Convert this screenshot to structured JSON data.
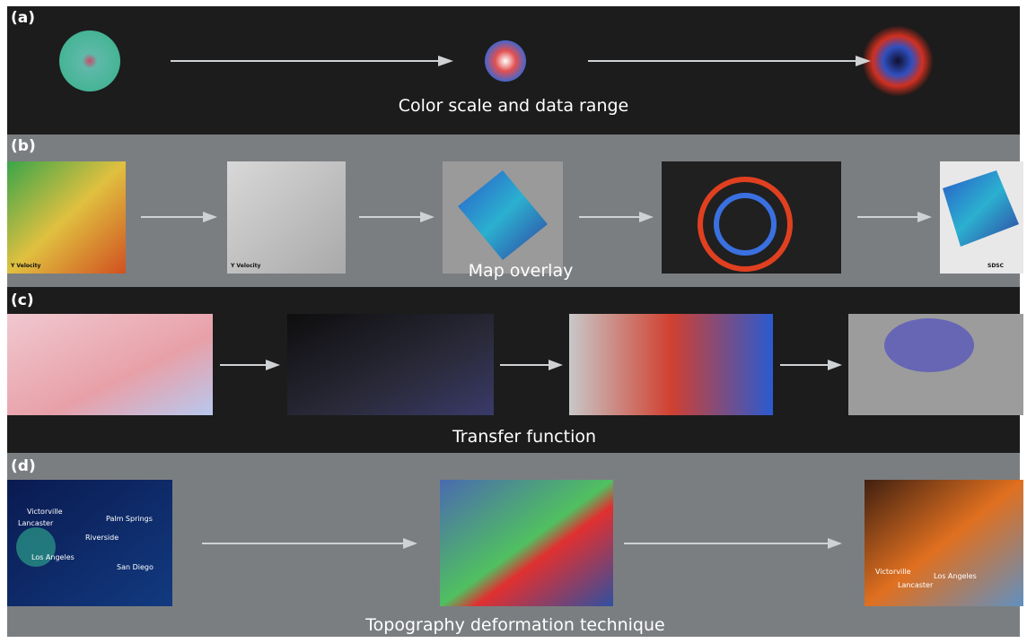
{
  "panels": [
    {
      "label": "(a)",
      "caption": "Color scale and data range"
    },
    {
      "label": "(b)",
      "caption": "Map overlay",
      "images": [
        {
          "labels": [
            "Y Velocity"
          ]
        },
        {
          "labels": [
            "Y Velocity"
          ]
        },
        {},
        {},
        {
          "labels": [
            "SDSC"
          ]
        }
      ]
    },
    {
      "label": "(c)",
      "caption": "Transfer function"
    },
    {
      "label": "(d)",
      "caption": "Topography deformation technique",
      "images": [
        {
          "labels": [
            "Victorville",
            "Lancaster",
            "Palm Springs",
            "Riverside",
            "Los Angeles",
            "San Diego"
          ]
        },
        {},
        {
          "labels": [
            "Victorville",
            "Lancaster",
            "Los Angeles"
          ]
        }
      ]
    }
  ]
}
